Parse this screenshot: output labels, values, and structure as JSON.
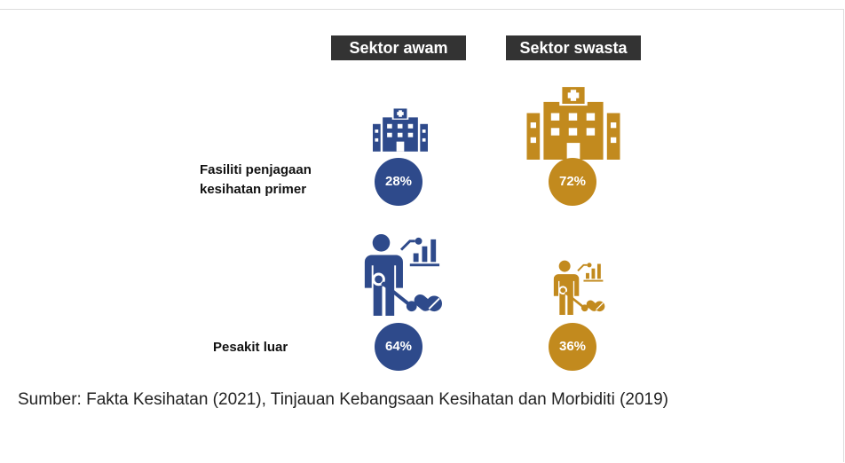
{
  "headers": [
    "Sektor awam",
    "Sektor swasta"
  ],
  "rows": [
    {
      "label": "Fasiliti penjagaan kesihatan primer",
      "values": [
        "28%",
        "72%"
      ]
    },
    {
      "label": "Pesakit luar",
      "values": [
        "64%",
        "36%"
      ]
    }
  ],
  "source": "Sumber: Fakta Kesihatan (2021), Tinjauan Kebangsaan Kesihatan dan Morbiditi (2019)"
}
